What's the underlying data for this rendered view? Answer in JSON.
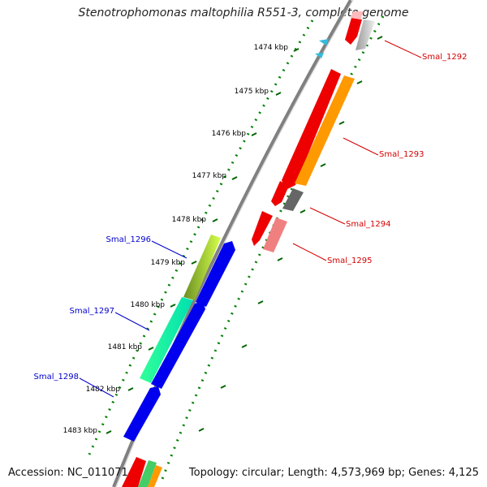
{
  "title": "Stenotrophomonas maltophilia R551-3, complete genome",
  "footer": {
    "accession": "Accession: NC_011071",
    "summary": "Topology: circular; Length: 4,573,969 bp; Genes: 4,125"
  },
  "ticks": [
    "1474 kbp",
    "1475 kbp",
    "1476 kbp",
    "1477 kbp",
    "1478 kbp",
    "1479 kbp",
    "1480 kbp",
    "1481 kbp",
    "1482 kbp",
    "1483 kbp"
  ],
  "genes": [
    {
      "name": "Smal_1292",
      "color": "#d40000"
    },
    {
      "name": "Smal_1293",
      "color": "#d40000"
    },
    {
      "name": "Smal_1294",
      "color": "#d40000"
    },
    {
      "name": "Smal_1295",
      "color": "#d40000"
    },
    {
      "name": "Smal_1296",
      "color": "#0000cc"
    },
    {
      "name": "Smal_1297",
      "color": "#0000cc"
    },
    {
      "name": "Smal_1298",
      "color": "#0000cc"
    }
  ],
  "colors": {
    "backbone": "#808080",
    "forward_cds": "#ff0000",
    "reverse_cds": "#0000ff",
    "orange": "#ff9900",
    "dotted_track": "#008000"
  }
}
